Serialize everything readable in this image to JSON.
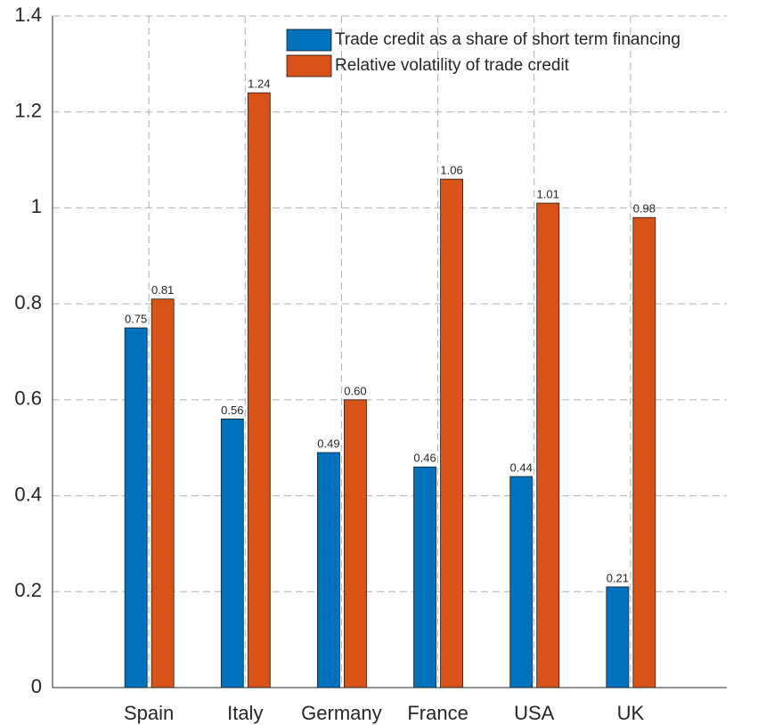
{
  "chart_data": {
    "type": "bar",
    "categories": [
      "Spain",
      "Italy",
      "Germany",
      "France",
      "USA",
      "UK"
    ],
    "series": [
      {
        "name": "Trade credit as a share of short term financing",
        "color": "#0072bd",
        "values": [
          0.75,
          0.56,
          0.49,
          0.46,
          0.44,
          0.21
        ],
        "value_labels": [
          "0.75",
          "0.56",
          "0.49",
          "0.46",
          "0.44",
          "0.21"
        ]
      },
      {
        "name": "Relative volatility of trade credit",
        "color": "#d95319",
        "values": [
          0.81,
          1.24,
          0.6,
          1.06,
          1.01,
          0.98
        ],
        "value_labels": [
          "0.81",
          "1.24",
          "0.60",
          "1.06",
          "1.01",
          "0.98"
        ]
      }
    ],
    "ylim": [
      0,
      1.4
    ],
    "yticks": [
      0,
      0.2,
      0.4,
      0.6,
      0.8,
      1,
      1.2,
      1.4
    ],
    "grid": true,
    "legend": "upper right"
  }
}
